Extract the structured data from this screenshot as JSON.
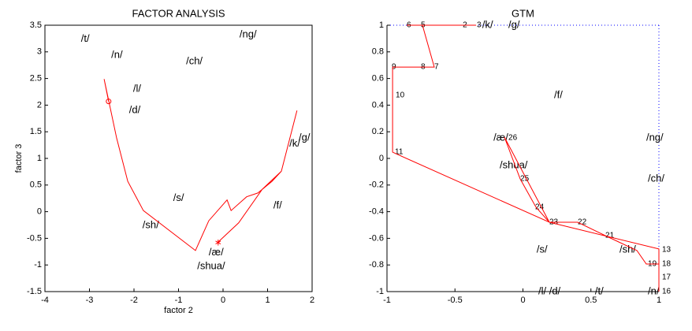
{
  "chart_data": [
    {
      "type": "line",
      "title": "FACTOR ANALYSIS",
      "xlabel": "factor 2",
      "ylabel": "factor 3",
      "xlim": [
        -4,
        2
      ],
      "xticks": [
        -4,
        -3,
        -2,
        -1,
        0,
        1,
        2
      ],
      "ylim": [
        -1.5,
        3.5
      ],
      "yticks": [
        -1.5,
        -1,
        -0.5,
        0,
        0.5,
        1,
        1.5,
        2,
        2.5,
        3,
        3.5
      ],
      "series": [
        {
          "color": "#ff0000",
          "x": [
            -2.57,
            -2.67,
            -2.39,
            -2.14,
            -1.79,
            -0.62,
            -0.32,
            0.09,
            0.18,
            0.53,
            0.78,
            1.1,
            1.31,
            1.66,
            1.31,
            0.88,
            0.35,
            -0.11
          ],
          "values": [
            2.07,
            2.49,
            1.38,
            0.57,
            0.02,
            -0.73,
            -0.17,
            0.22,
            0.02,
            0.28,
            0.35,
            0.57,
            0.76,
            1.9,
            0.76,
            0.42,
            -0.21,
            -0.57
          ]
        }
      ],
      "annotations": [
        {
          "text": "/t/",
          "x": -3.19,
          "y": 3.24
        },
        {
          "text": "/n/",
          "x": -2.51,
          "y": 2.94
        },
        {
          "text": "/ch/",
          "x": -0.83,
          "y": 2.82
        },
        {
          "text": "/ng/",
          "x": 0.37,
          "y": 3.32
        },
        {
          "text": "/l/",
          "x": -2.02,
          "y": 2.3
        },
        {
          "text": "/d/",
          "x": -2.11,
          "y": 1.9
        },
        {
          "text": "/k/",
          "x": 1.49,
          "y": 1.27
        },
        {
          "text": "/g/",
          "x": 1.7,
          "y": 1.38
        },
        {
          "text": "/s/",
          "x": -1.12,
          "y": 0.25
        },
        {
          "text": "/sh/",
          "x": -1.81,
          "y": -0.26
        },
        {
          "text": "/f/",
          "x": 1.13,
          "y": 0.11
        },
        {
          "text": "/æ/",
          "x": -0.32,
          "y": -0.77
        },
        {
          "text": "/shua/",
          "x": -0.58,
          "y": -1.03
        }
      ]
    },
    {
      "type": "line",
      "title": "GTM",
      "dotted_frame": "#0000ff",
      "xlim": [
        -1,
        1
      ],
      "xticks": [
        -1,
        -0.5,
        0,
        0.5,
        1
      ],
      "ylim": [
        -1,
        1
      ],
      "yticks": [
        -1,
        -0.8,
        -0.6,
        -0.4,
        -0.2,
        0,
        0.2,
        0.4,
        0.6,
        0.8,
        1
      ],
      "series": [
        {
          "color": "#ff0000",
          "x": [
            -0.345,
            -0.855,
            -0.739,
            -0.652,
            -0.959,
            -0.959,
            0.194,
            -0.136,
            -0.02,
            0.096,
            0.194,
            0.403,
            0.606,
            0.838,
            0.907,
            1.0,
            1.0,
            1.0,
            0.194
          ],
          "values": [
            1,
            1,
            1,
            0.686,
            0.686,
            0.047,
            -0.479,
            0.16,
            -0.154,
            -0.367,
            -0.479,
            -0.479,
            -0.58,
            -0.692,
            -0.793,
            -0.793,
            -1,
            -0.68,
            -0.479
          ]
        }
      ],
      "annotations": [
        {
          "text": "/k/",
          "x": -0.299,
          "y": 1
        },
        {
          "text": "/g/",
          "x": -0.107,
          "y": 1
        },
        {
          "text": "/f/",
          "x": 0.229,
          "y": 0.473
        },
        {
          "text": "/æ/",
          "x": -0.217,
          "y": 0.154
        },
        {
          "text": "/ng/",
          "x": 0.907,
          "y": 0.154
        },
        {
          "text": "/shua/",
          "x": -0.171,
          "y": -0.053
        },
        {
          "text": "/ch/",
          "x": 0.919,
          "y": -0.154
        },
        {
          "text": "/s/",
          "x": 0.101,
          "y": -0.686
        },
        {
          "text": "/sh/",
          "x": 0.71,
          "y": -0.686
        },
        {
          "text": "/l/ /d/",
          "x": 0.113,
          "y": -1
        },
        {
          "text": "/t/",
          "x": 0.53,
          "y": -1
        },
        {
          "text": "/n/",
          "x": 0.919,
          "y": -1
        }
      ],
      "point_labels": [
        {
          "text": "2",
          "x": -0.443,
          "y": 1
        },
        {
          "text": "3",
          "x": -0.339,
          "y": 1
        },
        {
          "text": "5",
          "x": -0.751,
          "y": 1
        },
        {
          "text": "6",
          "x": -0.855,
          "y": 1
        },
        {
          "text": "7",
          "x": -0.652,
          "y": 0.686
        },
        {
          "text": "8",
          "x": -0.751,
          "y": 0.686
        },
        {
          "text": "9",
          "x": -0.965,
          "y": 0.686
        },
        {
          "text": "10",
          "x": -0.936,
          "y": 0.473
        },
        {
          "text": "11",
          "x": -0.942,
          "y": 0.047
        },
        {
          "text": "26",
          "x": -0.107,
          "y": 0.154
        },
        {
          "text": "25",
          "x": -0.02,
          "y": -0.154
        },
        {
          "text": "24",
          "x": 0.09,
          "y": -0.367
        },
        {
          "text": "23",
          "x": 0.194,
          "y": -0.479
        },
        {
          "text": "22",
          "x": 0.403,
          "y": -0.479
        },
        {
          "text": "21",
          "x": 0.606,
          "y": -0.58
        },
        {
          "text": "13",
          "x": 1.023,
          "y": -0.686
        },
        {
          "text": "19",
          "x": 0.919,
          "y": -0.793
        },
        {
          "text": "18",
          "x": 1.023,
          "y": -0.793
        },
        {
          "text": "17",
          "x": 1.023,
          "y": -0.893
        },
        {
          "text": "16",
          "x": 1.023,
          "y": -1
        }
      ]
    }
  ]
}
